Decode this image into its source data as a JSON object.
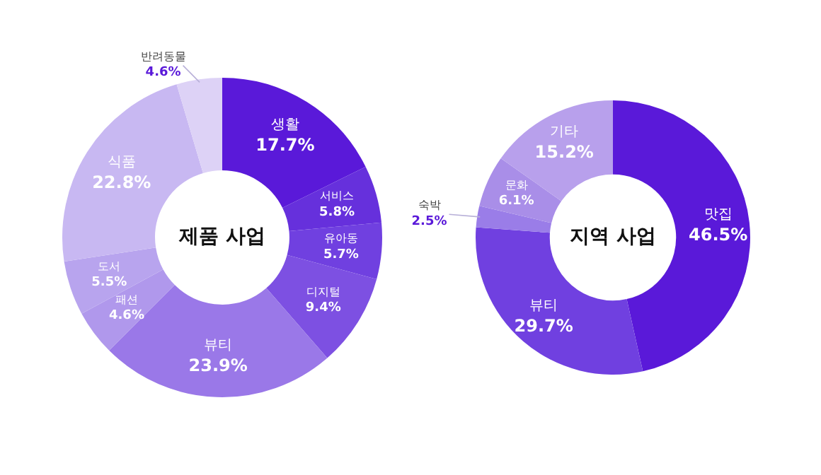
{
  "chart_data": [
    {
      "type": "donut",
      "title": "제품 사업",
      "categories": [
        "생활",
        "서비스",
        "유아동",
        "디지털",
        "뷰티",
        "패션",
        "도서",
        "식품",
        "반려동물"
      ],
      "values": [
        17.7,
        5.8,
        5.7,
        9.4,
        23.9,
        4.6,
        5.5,
        22.8,
        4.6
      ],
      "value_labels": [
        "17.7%",
        "5.8%",
        "5.7%",
        "9.4%",
        "23.9%",
        "4.6%",
        "5.5%",
        "22.8%",
        "4.6%"
      ],
      "colors": [
        "#5a19d9",
        "#6630dc",
        "#7040e0",
        "#7d50e2",
        "#9a78e8",
        "#b098ec",
        "#b8a4ee",
        "#c8b8f2",
        "#ddd2f6"
      ],
      "legend": false
    },
    {
      "type": "donut",
      "title": "지역 사업",
      "categories": [
        "맛집",
        "뷰티",
        "숙박",
        "문화",
        "기타"
      ],
      "values": [
        46.5,
        29.7,
        2.5,
        6.1,
        15.2
      ],
      "value_labels": [
        "46.5%",
        "29.7%",
        "2.5%",
        "6.1%",
        "15.2%"
      ],
      "colors": [
        "#5a19d9",
        "#7040e0",
        "#9a7de8",
        "#a98ee8",
        "#b8a0ec"
      ],
      "legend": false
    }
  ]
}
